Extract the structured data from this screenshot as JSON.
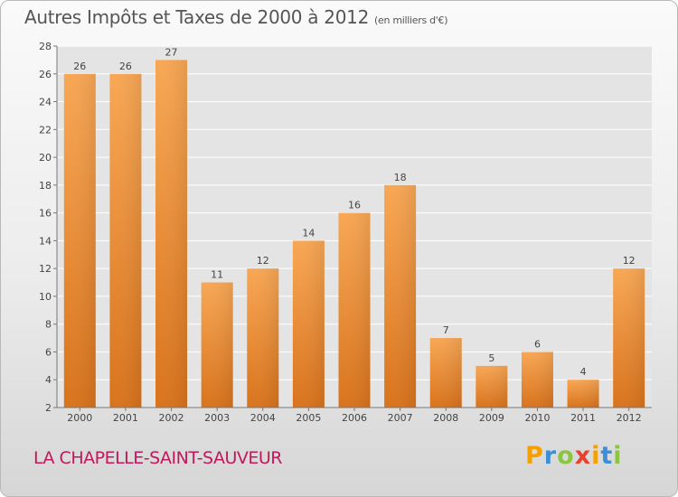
{
  "chart_data": {
    "type": "bar",
    "title": "Autres Impôts et Taxes de 2000 à 2012",
    "subtitle": "(en milliers d'€)",
    "categories": [
      "2000",
      "2001",
      "2002",
      "2003",
      "2004",
      "2005",
      "2006",
      "2007",
      "2008",
      "2009",
      "2010",
      "2011",
      "2012"
    ],
    "values": [
      26,
      26,
      27,
      11,
      12,
      14,
      16,
      18,
      7,
      5,
      6,
      4,
      12
    ],
    "ylim": [
      2,
      28
    ],
    "yticks": [
      2,
      4,
      6,
      8,
      10,
      12,
      14,
      16,
      18,
      20,
      22,
      24,
      26,
      28
    ],
    "xlabel": "",
    "ylabel": "",
    "grid": "horizontal",
    "bar_color": "#f5a04a"
  },
  "footer": {
    "commune": "LA CHAPELLE-SAINT-SAUVEUR",
    "brand": "Proxiti"
  },
  "colors": {
    "commune_text": "#c2185b",
    "brand_letters": [
      "#f5a000",
      "#3b8fd8",
      "#8cc63f",
      "#e8412c",
      "#f5a000",
      "#3b8fd8",
      "#8cc63f"
    ]
  }
}
